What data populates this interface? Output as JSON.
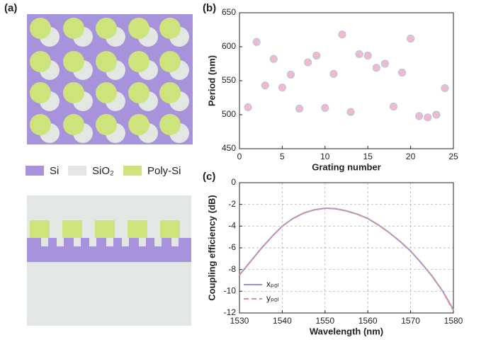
{
  "panel_a": {
    "label": "(a)",
    "legend": [
      "Si",
      "SiO₂",
      "Poly-Si"
    ]
  },
  "chart_data": [
    {
      "type": "scatter",
      "panel_label": "(b)",
      "xlabel": "Grating number",
      "ylabel": "Period (nm)",
      "x": [
        1,
        2,
        3,
        4,
        5,
        6,
        7,
        8,
        9,
        10,
        11,
        12,
        13,
        14,
        15,
        16,
        17,
        18,
        19,
        20,
        21,
        22,
        23,
        24
      ],
      "values": [
        511,
        607,
        543,
        582,
        540,
        559,
        509,
        577,
        587,
        510,
        560,
        618,
        504,
        589,
        587,
        569,
        575,
        512,
        562,
        612,
        498,
        496,
        500,
        539
      ],
      "color": "#f2b8cd",
      "edge_color": "#b9c6e6",
      "xlim": [
        0,
        25
      ],
      "ylim": [
        450,
        650
      ],
      "xticks": [
        0,
        5,
        10,
        15,
        20,
        25
      ],
      "yticks": [
        450,
        500,
        550,
        600,
        650
      ],
      "grid": false
    },
    {
      "type": "line",
      "panel_label": "(c)",
      "xlabel": "Wavelength (nm)",
      "ylabel": "Coupling efficiency (dB)",
      "x": [
        1530,
        1532.5,
        1535,
        1537.5,
        1540,
        1542.5,
        1545,
        1547.5,
        1550,
        1552.5,
        1555,
        1557.5,
        1560,
        1562.5,
        1565,
        1567.5,
        1570,
        1572.5,
        1575,
        1577.5,
        1580
      ],
      "series": [
        {
          "name": "xₚₒₗ",
          "color": "#9c93d6",
          "dashed": false,
          "values": [
            -8.5,
            -7.3,
            -6.1,
            -5.0,
            -4.0,
            -3.3,
            -2.8,
            -2.5,
            -2.35,
            -2.4,
            -2.6,
            -2.9,
            -3.3,
            -3.9,
            -4.6,
            -5.4,
            -6.3,
            -7.4,
            -8.6,
            -10.0,
            -11.7
          ]
        },
        {
          "name": "yₚₒₗ",
          "color": "#d4939c",
          "dashed": true,
          "values": [
            -8.5,
            -7.3,
            -6.1,
            -5.0,
            -4.0,
            -3.3,
            -2.8,
            -2.5,
            -2.35,
            -2.4,
            -2.6,
            -2.9,
            -3.3,
            -3.9,
            -4.6,
            -5.4,
            -6.3,
            -7.4,
            -8.6,
            -10.0,
            -11.8
          ]
        }
      ],
      "xlim": [
        1530,
        1580
      ],
      "ylim": [
        -12,
        0
      ],
      "xticks": [
        1530,
        1540,
        1550,
        1560,
        1570,
        1580
      ],
      "yticks": [
        -12,
        -10,
        -8,
        -6,
        -4,
        -2,
        0
      ],
      "grid": true,
      "legend": "lower left"
    }
  ]
}
